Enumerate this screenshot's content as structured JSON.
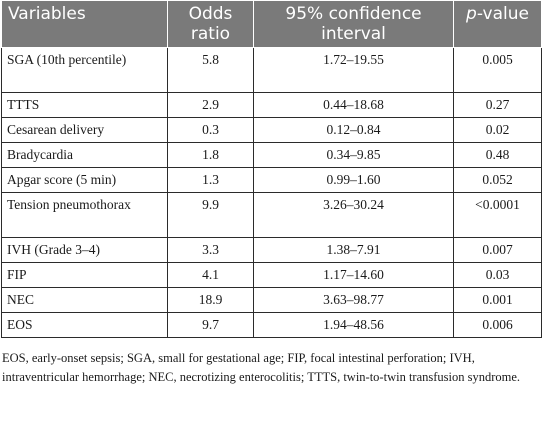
{
  "table": {
    "headers": {
      "variables": "Variables",
      "odds_ratio": "Odds ratio",
      "ci": "95% confidence interval",
      "p_prefix": "p",
      "p_suffix": "-value"
    },
    "rows": [
      {
        "variable": "SGA (10th percentile)",
        "odds_ratio": "5.8",
        "ci": "1.72–19.55",
        "p_value": "0.005"
      },
      {
        "variable": "TTTS",
        "odds_ratio": "2.9",
        "ci": "0.44–18.68",
        "p_value": "0.27"
      },
      {
        "variable": "Cesarean delivery",
        "odds_ratio": "0.3",
        "ci": "0.12–0.84",
        "p_value": "0.02"
      },
      {
        "variable": "Bradycardia",
        "odds_ratio": "1.8",
        "ci": "0.34–9.85",
        "p_value": "0.48"
      },
      {
        "variable": "Apgar score (5 min)",
        "odds_ratio": "1.3",
        "ci": "0.99–1.60",
        "p_value": "0.052"
      },
      {
        "variable": "Tension pneumothorax",
        "odds_ratio": "9.9",
        "ci": "3.26–30.24",
        "p_value": "<0.0001"
      },
      {
        "variable": "IVH (Grade 3–4)",
        "odds_ratio": "3.3",
        "ci": "1.38–7.91",
        "p_value": "0.007"
      },
      {
        "variable": "FIP",
        "odds_ratio": "4.1",
        "ci": "1.17–14.60",
        "p_value": "0.03"
      },
      {
        "variable": "NEC",
        "odds_ratio": "18.9",
        "ci": "3.63–98.77",
        "p_value": "0.001"
      },
      {
        "variable": "EOS",
        "odds_ratio": "9.7",
        "ci": "1.94–48.56",
        "p_value": "0.006"
      }
    ]
  },
  "footnote": "EOS, early-onset sepsis; SGA, small for gestational age; FIP, focal intestinal perforation; IVH, intraventricular hemorrhage; NEC, necrotizing enterocolitis; TTTS, twin-to-twin transfusion syndrome.",
  "colors": {
    "header_bg": "#7a7a7a",
    "header_text": "#ffffff",
    "border": "#2b2b2b"
  }
}
